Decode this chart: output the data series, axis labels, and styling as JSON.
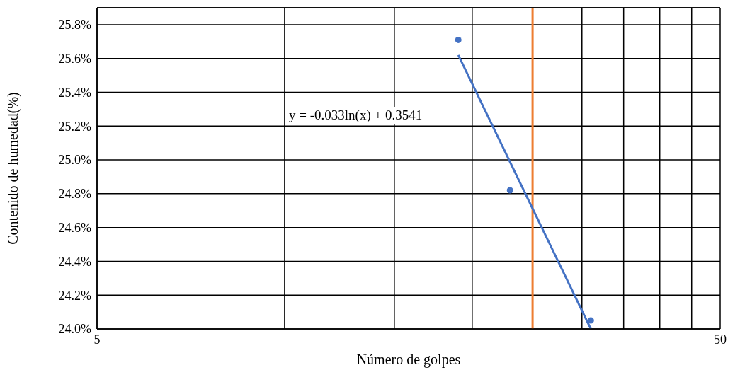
{
  "chart_data": {
    "type": "scatter",
    "xlabel": "Número de golpes",
    "ylabel": "Contenido de humedad(%)",
    "log": "x",
    "grid": true,
    "marker": "circle",
    "xlim": [
      5,
      50
    ],
    "xticks": [
      5,
      {
        "value": 10,
        "label": null
      },
      {
        "value": 15,
        "label": null
      },
      {
        "value": 20,
        "label": null
      },
      {
        "value": 25,
        "label": null
      },
      {
        "value": 30,
        "label": null
      },
      {
        "value": 35,
        "label": null
      },
      {
        "value": 40,
        "label": null
      },
      {
        "value": 45,
        "label": null
      },
      50
    ],
    "ylim": [
      24.0,
      25.9
    ],
    "yticks": [
      {
        "value": 24.0,
        "label": "24.0%"
      },
      {
        "value": 24.2,
        "label": "24.2%"
      },
      {
        "value": 24.4,
        "label": "24.4%"
      },
      {
        "value": 24.6,
        "label": "24.6%"
      },
      {
        "value": 24.8,
        "label": "24.8%"
      },
      {
        "value": 25.0,
        "label": "25.0%"
      },
      {
        "value": 25.2,
        "label": "25.2%"
      },
      {
        "value": 25.4,
        "label": "25.4%"
      },
      {
        "value": 25.6,
        "label": "25.6%"
      },
      {
        "value": 25.8,
        "label": "25.8%"
      }
    ],
    "series": [
      {
        "color": "#4472c4",
        "x": [
          19,
          23,
          31
        ],
        "values": [
          25.71,
          24.82,
          24.05
        ]
      },
      {
        "type": "line",
        "color": "#4472c4",
        "marker": "none",
        "x": [
          19,
          31
        ],
        "values": [
          25.62,
          24.0
        ]
      }
    ],
    "ref_lines": [
      {
        "axis": "x",
        "value": 25,
        "label": null,
        "color": "#ed7d31"
      }
    ],
    "annotations": [
      "y = -0.033ln(x) + 0.3541"
    ]
  }
}
